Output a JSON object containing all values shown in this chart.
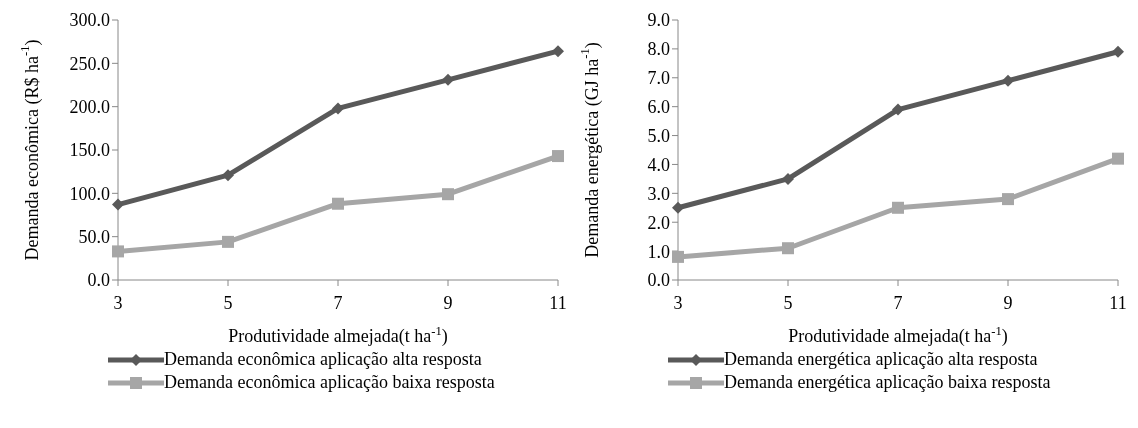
{
  "chart_data": [
    {
      "type": "line",
      "categories": [
        "3",
        "5",
        "7",
        "9",
        "11"
      ],
      "xlabel": "Produtividade almejada(t ha$^{-1}$)",
      "ylabel": "Demanda econômica (R$ ha$^{-1}$)",
      "ylim": [
        0,
        300
      ],
      "yticks": [
        {
          "value": 0,
          "label": "0.0"
        },
        {
          "value": 50,
          "label": "50.0"
        },
        {
          "value": 100,
          "label": "100.0"
        },
        {
          "value": 150,
          "label": "150.0"
        },
        {
          "value": 200,
          "label": "200.0"
        },
        {
          "value": 250,
          "label": "250.0"
        },
        {
          "value": 300,
          "label": "300.0"
        }
      ],
      "legend": "bottom",
      "grid": false,
      "series": [
        {
          "name": "Demanda econômica aplicação alta resposta",
          "color": "#595959",
          "marker": "diamond",
          "values": [
            87,
            121,
            198,
            231,
            264
          ]
        },
        {
          "name": "Demanda econômica aplicação baixa resposta",
          "color": "#a6a6a6",
          "marker": "square",
          "values": [
            33,
            44,
            88,
            99,
            143
          ]
        }
      ]
    },
    {
      "type": "line",
      "categories": [
        "3",
        "5",
        "7",
        "9",
        "11"
      ],
      "xlabel": "Produtividade almejada(t ha$^{-1}$)",
      "ylabel": "Demanda energética (GJ ha$^{-1}$)",
      "ylim": [
        0,
        9
      ],
      "yticks": [
        {
          "value": 0,
          "label": "0.0"
        },
        {
          "value": 1,
          "label": "1.0"
        },
        {
          "value": 2,
          "label": "2.0"
        },
        {
          "value": 3,
          "label": "3.0"
        },
        {
          "value": 4,
          "label": "4.0"
        },
        {
          "value": 5,
          "label": "5.0"
        },
        {
          "value": 6,
          "label": "6.0"
        },
        {
          "value": 7,
          "label": "7.0"
        },
        {
          "value": 8,
          "label": "8.0"
        },
        {
          "value": 9,
          "label": "9.0"
        }
      ],
      "legend": "bottom",
      "grid": false,
      "series": [
        {
          "name": "Demanda energética aplicação alta resposta",
          "color": "#595959",
          "marker": "diamond",
          "values": [
            2.5,
            3.5,
            5.9,
            6.9,
            7.9
          ]
        },
        {
          "name": "Demanda energética aplicação baixa resposta",
          "color": "#a6a6a6",
          "marker": "square",
          "values": [
            0.8,
            1.1,
            2.5,
            2.8,
            4.2
          ]
        }
      ]
    }
  ]
}
